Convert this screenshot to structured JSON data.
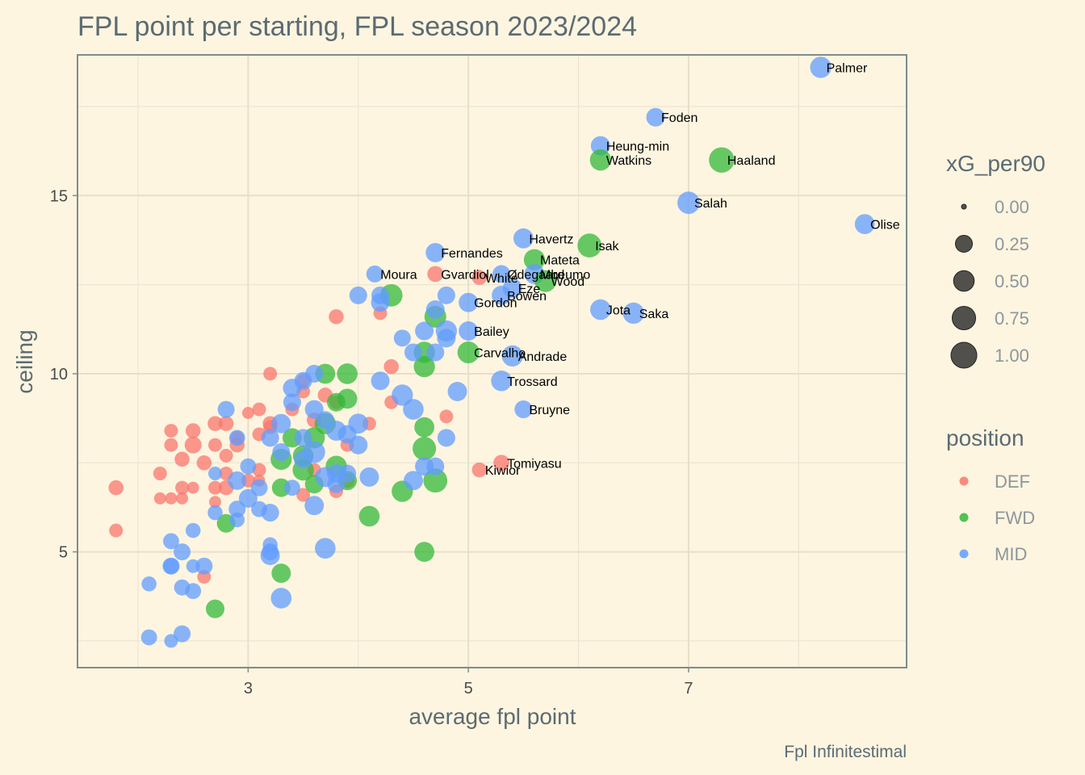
{
  "chart_data": {
    "type": "scatter",
    "title": "FPL point per starting, FPL season 2023/2024",
    "xlabel": "average fpl point",
    "ylabel": "ceiling",
    "caption": "Fpl Infinitestimal",
    "xlim": [
      1.45,
      8.98
    ],
    "ylim": [
      1.75,
      18.95
    ],
    "xticks": [
      3,
      5,
      7
    ],
    "yticks": [
      5,
      10,
      15
    ],
    "grid": true,
    "colors": {
      "DEF": "#f8766d",
      "FWD": "#33b83a",
      "MID": "#619cff"
    },
    "size_legend": {
      "title": "xG_per90",
      "values": [
        0.0,
        0.25,
        0.5,
        0.75,
        1.0
      ],
      "labels": [
        "0.00",
        "0.25",
        "0.50",
        "0.75",
        "1.00"
      ]
    },
    "color_legend": {
      "title": "position",
      "entries": [
        "DEF",
        "FWD",
        "MID"
      ]
    },
    "points": [
      {
        "x": 8.2,
        "y": 18.6,
        "pos": "MID",
        "xg": 0.55,
        "name": "Palmer"
      },
      {
        "x": 6.7,
        "y": 17.2,
        "pos": "MID",
        "xg": 0.35,
        "name": "Foden"
      },
      {
        "x": 6.2,
        "y": 16.4,
        "pos": "MID",
        "xg": 0.4,
        "name": "Heung-min"
      },
      {
        "x": 6.2,
        "y": 16.0,
        "pos": "FWD",
        "xg": 0.55,
        "name": "Watkins"
      },
      {
        "x": 7.3,
        "y": 16.0,
        "pos": "FWD",
        "xg": 0.95,
        "name": "Haaland"
      },
      {
        "x": 7.0,
        "y": 14.8,
        "pos": "MID",
        "xg": 0.65,
        "name": "Salah"
      },
      {
        "x": 8.6,
        "y": 14.2,
        "pos": "MID",
        "xg": 0.45,
        "name": "Olise"
      },
      {
        "x": 5.5,
        "y": 13.8,
        "pos": "MID",
        "xg": 0.45,
        "name": "Havertz"
      },
      {
        "x": 6.1,
        "y": 13.6,
        "pos": "FWD",
        "xg": 0.8,
        "name": "Isak"
      },
      {
        "x": 4.7,
        "y": 13.4,
        "pos": "MID",
        "xg": 0.4,
        "name": "Fernandes"
      },
      {
        "x": 5.6,
        "y": 13.2,
        "pos": "FWD",
        "xg": 0.55,
        "name": "Mateta"
      },
      {
        "x": 4.15,
        "y": 12.8,
        "pos": "MID",
        "xg": 0.25,
        "name": "Moura"
      },
      {
        "x": 4.7,
        "y": 12.8,
        "pos": "DEF",
        "xg": 0.2,
        "name": "Gvardiol"
      },
      {
        "x": 5.1,
        "y": 12.7,
        "pos": "DEF",
        "xg": 0.15,
        "name": "White"
      },
      {
        "x": 5.3,
        "y": 12.8,
        "pos": "MID",
        "xg": 0.3,
        "name": "Ødegaard"
      },
      {
        "x": 5.6,
        "y": 12.8,
        "pos": "MID",
        "xg": 0.45,
        "name": "Mbeumo"
      },
      {
        "x": 5.7,
        "y": 12.6,
        "pos": "FWD",
        "xg": 0.6,
        "name": "Wood"
      },
      {
        "x": 5.4,
        "y": 12.4,
        "pos": "MID",
        "xg": 0.4,
        "name": "Eze"
      },
      {
        "x": 5.3,
        "y": 12.2,
        "pos": "MID",
        "xg": 0.4,
        "name": "Bowen"
      },
      {
        "x": 5.0,
        "y": 12.0,
        "pos": "MID",
        "xg": 0.4,
        "name": "Gordon"
      },
      {
        "x": 6.2,
        "y": 11.8,
        "pos": "MID",
        "xg": 0.5,
        "name": "Jota"
      },
      {
        "x": 6.5,
        "y": 11.7,
        "pos": "MID",
        "xg": 0.55,
        "name": "Saka"
      },
      {
        "x": 5.0,
        "y": 11.2,
        "pos": "MID",
        "xg": 0.4,
        "name": "Bailey"
      },
      {
        "x": 5.0,
        "y": 10.6,
        "pos": "FWD",
        "xg": 0.6,
        "name": "Carvalho"
      },
      {
        "x": 5.4,
        "y": 10.5,
        "pos": "MID",
        "xg": 0.55,
        "name": "Andrade"
      },
      {
        "x": 5.3,
        "y": 9.8,
        "pos": "MID",
        "xg": 0.5,
        "name": "Trossard"
      },
      {
        "x": 5.5,
        "y": 9.0,
        "pos": "MID",
        "xg": 0.3,
        "name": "Bruyne"
      },
      {
        "x": 5.3,
        "y": 7.5,
        "pos": "DEF",
        "xg": 0.2,
        "name": "Tomiyasu"
      },
      {
        "x": 5.1,
        "y": 7.3,
        "pos": "DEF",
        "xg": 0.15,
        "name": "Kiwior"
      },
      {
        "x": 1.8,
        "y": 6.8,
        "pos": "DEF",
        "xg": 0.15
      },
      {
        "x": 1.8,
        "y": 5.6,
        "pos": "DEF",
        "xg": 0.1
      },
      {
        "x": 2.2,
        "y": 7.2,
        "pos": "DEF",
        "xg": 0.1
      },
      {
        "x": 2.2,
        "y": 6.5,
        "pos": "DEF",
        "xg": 0.05
      },
      {
        "x": 2.3,
        "y": 8.4,
        "pos": "DEF",
        "xg": 0.1
      },
      {
        "x": 2.3,
        "y": 8.0,
        "pos": "DEF",
        "xg": 0.1
      },
      {
        "x": 2.3,
        "y": 6.5,
        "pos": "DEF",
        "xg": 0.05
      },
      {
        "x": 2.4,
        "y": 7.6,
        "pos": "DEF",
        "xg": 0.15
      },
      {
        "x": 2.4,
        "y": 6.8,
        "pos": "DEF",
        "xg": 0.1
      },
      {
        "x": 2.4,
        "y": 6.5,
        "pos": "DEF",
        "xg": 0.05
      },
      {
        "x": 2.5,
        "y": 8.4,
        "pos": "DEF",
        "xg": 0.15
      },
      {
        "x": 2.5,
        "y": 8.0,
        "pos": "DEF",
        "xg": 0.25
      },
      {
        "x": 2.5,
        "y": 6.8,
        "pos": "DEF",
        "xg": 0.05
      },
      {
        "x": 2.6,
        "y": 7.5,
        "pos": "DEF",
        "xg": 0.15
      },
      {
        "x": 2.6,
        "y": 4.3,
        "pos": "DEF",
        "xg": 0.1
      },
      {
        "x": 2.7,
        "y": 8.6,
        "pos": "DEF",
        "xg": 0.15
      },
      {
        "x": 2.7,
        "y": 8.0,
        "pos": "DEF",
        "xg": 0.1
      },
      {
        "x": 2.7,
        "y": 6.8,
        "pos": "DEF",
        "xg": 0.1
      },
      {
        "x": 2.7,
        "y": 6.4,
        "pos": "DEF",
        "xg": 0.05
      },
      {
        "x": 2.8,
        "y": 8.6,
        "pos": "DEF",
        "xg": 0.15
      },
      {
        "x": 2.8,
        "y": 7.7,
        "pos": "DEF",
        "xg": 0.1
      },
      {
        "x": 2.8,
        "y": 7.2,
        "pos": "DEF",
        "xg": 0.1
      },
      {
        "x": 2.8,
        "y": 6.8,
        "pos": "DEF",
        "xg": 0.15
      },
      {
        "x": 2.9,
        "y": 8.2,
        "pos": "DEF",
        "xg": 0.1
      },
      {
        "x": 2.9,
        "y": 8.0,
        "pos": "DEF",
        "xg": 0.15
      },
      {
        "x": 3.0,
        "y": 8.9,
        "pos": "DEF",
        "xg": 0.05
      },
      {
        "x": 3.0,
        "y": 7.0,
        "pos": "DEF",
        "xg": 0.1
      },
      {
        "x": 3.1,
        "y": 9.0,
        "pos": "DEF",
        "xg": 0.1
      },
      {
        "x": 3.1,
        "y": 8.3,
        "pos": "DEF",
        "xg": 0.1
      },
      {
        "x": 3.1,
        "y": 7.3,
        "pos": "DEF",
        "xg": 0.1
      },
      {
        "x": 3.1,
        "y": 7.0,
        "pos": "DEF",
        "xg": 0.05
      },
      {
        "x": 3.2,
        "y": 10.0,
        "pos": "DEF",
        "xg": 0.1
      },
      {
        "x": 3.2,
        "y": 8.6,
        "pos": "DEF",
        "xg": 0.15
      },
      {
        "x": 3.2,
        "y": 8.5,
        "pos": "DEF",
        "xg": 0.1
      },
      {
        "x": 3.4,
        "y": 9.0,
        "pos": "DEF",
        "xg": 0.1
      },
      {
        "x": 3.5,
        "y": 9.8,
        "pos": "DEF",
        "xg": 0.1
      },
      {
        "x": 3.5,
        "y": 9.5,
        "pos": "DEF",
        "xg": 0.1
      },
      {
        "x": 3.5,
        "y": 6.6,
        "pos": "DEF",
        "xg": 0.1
      },
      {
        "x": 3.6,
        "y": 8.7,
        "pos": "DEF",
        "xg": 0.15
      },
      {
        "x": 3.6,
        "y": 7.3,
        "pos": "DEF",
        "xg": 0.1
      },
      {
        "x": 3.7,
        "y": 9.4,
        "pos": "DEF",
        "xg": 0.15
      },
      {
        "x": 3.8,
        "y": 11.6,
        "pos": "DEF",
        "xg": 0.15
      },
      {
        "x": 3.8,
        "y": 9.2,
        "pos": "DEF",
        "xg": 0.1
      },
      {
        "x": 3.8,
        "y": 6.7,
        "pos": "DEF",
        "xg": 0.1
      },
      {
        "x": 3.9,
        "y": 8.0,
        "pos": "DEF",
        "xg": 0.1
      },
      {
        "x": 3.9,
        "y": 7.0,
        "pos": "DEF",
        "xg": 0.15
      },
      {
        "x": 4.1,
        "y": 8.6,
        "pos": "DEF",
        "xg": 0.1
      },
      {
        "x": 4.2,
        "y": 11.7,
        "pos": "DEF",
        "xg": 0.1
      },
      {
        "x": 4.3,
        "y": 10.2,
        "pos": "DEF",
        "xg": 0.15
      },
      {
        "x": 4.3,
        "y": 9.2,
        "pos": "DEF",
        "xg": 0.1
      },
      {
        "x": 4.8,
        "y": 8.8,
        "pos": "DEF",
        "xg": 0.1
      },
      {
        "x": 2.7,
        "y": 3.4,
        "pos": "FWD",
        "xg": 0.35
      },
      {
        "x": 2.8,
        "y": 5.8,
        "pos": "FWD",
        "xg": 0.35
      },
      {
        "x": 3.3,
        "y": 7.6,
        "pos": "FWD",
        "xg": 0.55
      },
      {
        "x": 3.3,
        "y": 6.8,
        "pos": "FWD",
        "xg": 0.35
      },
      {
        "x": 3.3,
        "y": 4.4,
        "pos": "FWD",
        "xg": 0.4
      },
      {
        "x": 3.4,
        "y": 8.2,
        "pos": "FWD",
        "xg": 0.4
      },
      {
        "x": 3.5,
        "y": 7.7,
        "pos": "FWD",
        "xg": 0.5
      },
      {
        "x": 3.5,
        "y": 7.3,
        "pos": "FWD",
        "xg": 0.55
      },
      {
        "x": 3.6,
        "y": 8.2,
        "pos": "FWD",
        "xg": 0.55
      },
      {
        "x": 3.6,
        "y": 6.9,
        "pos": "FWD",
        "xg": 0.35
      },
      {
        "x": 3.7,
        "y": 10.0,
        "pos": "FWD",
        "xg": 0.45
      },
      {
        "x": 3.7,
        "y": 8.6,
        "pos": "FWD",
        "xg": 0.55
      },
      {
        "x": 3.8,
        "y": 9.2,
        "pos": "FWD",
        "xg": 0.35
      },
      {
        "x": 3.8,
        "y": 7.4,
        "pos": "FWD",
        "xg": 0.55
      },
      {
        "x": 3.9,
        "y": 10.0,
        "pos": "FWD",
        "xg": 0.5
      },
      {
        "x": 3.9,
        "y": 9.3,
        "pos": "FWD",
        "xg": 0.45
      },
      {
        "x": 3.9,
        "y": 7.0,
        "pos": "FWD",
        "xg": 0.4
      },
      {
        "x": 4.1,
        "y": 6.0,
        "pos": "FWD",
        "xg": 0.5
      },
      {
        "x": 4.3,
        "y": 12.2,
        "pos": "FWD",
        "xg": 0.65
      },
      {
        "x": 4.4,
        "y": 6.7,
        "pos": "FWD",
        "xg": 0.55
      },
      {
        "x": 4.6,
        "y": 10.6,
        "pos": "FWD",
        "xg": 0.55
      },
      {
        "x": 4.6,
        "y": 10.2,
        "pos": "FWD",
        "xg": 0.55
      },
      {
        "x": 4.6,
        "y": 8.5,
        "pos": "FWD",
        "xg": 0.45
      },
      {
        "x": 4.6,
        "y": 7.9,
        "pos": "FWD",
        "xg": 0.75
      },
      {
        "x": 4.6,
        "y": 5.0,
        "pos": "FWD",
        "xg": 0.45
      },
      {
        "x": 4.7,
        "y": 11.6,
        "pos": "FWD",
        "xg": 0.6
      },
      {
        "x": 4.7,
        "y": 7.0,
        "pos": "FWD",
        "xg": 0.8
      },
      {
        "x": 2.1,
        "y": 4.1,
        "pos": "MID",
        "xg": 0.15
      },
      {
        "x": 2.1,
        "y": 2.6,
        "pos": "MID",
        "xg": 0.2
      },
      {
        "x": 2.3,
        "y": 5.3,
        "pos": "MID",
        "xg": 0.2
      },
      {
        "x": 2.3,
        "y": 4.6,
        "pos": "MID",
        "xg": 0.2
      },
      {
        "x": 2.3,
        "y": 4.6,
        "pos": "MID",
        "xg": 0.25
      },
      {
        "x": 2.3,
        "y": 2.5,
        "pos": "MID",
        "xg": 0.1
      },
      {
        "x": 2.4,
        "y": 5.0,
        "pos": "MID",
        "xg": 0.25
      },
      {
        "x": 2.4,
        "y": 4.0,
        "pos": "MID",
        "xg": 0.2
      },
      {
        "x": 2.4,
        "y": 2.7,
        "pos": "MID",
        "xg": 0.25
      },
      {
        "x": 2.5,
        "y": 5.6,
        "pos": "MID",
        "xg": 0.15
      },
      {
        "x": 2.5,
        "y": 4.6,
        "pos": "MID",
        "xg": 0.1
      },
      {
        "x": 2.5,
        "y": 3.9,
        "pos": "MID",
        "xg": 0.2
      },
      {
        "x": 2.6,
        "y": 4.6,
        "pos": "MID",
        "xg": 0.25
      },
      {
        "x": 2.7,
        "y": 7.2,
        "pos": "MID",
        "xg": 0.1
      },
      {
        "x": 2.7,
        "y": 6.1,
        "pos": "MID",
        "xg": 0.15
      },
      {
        "x": 2.8,
        "y": 9.0,
        "pos": "MID",
        "xg": 0.25
      },
      {
        "x": 2.9,
        "y": 8.2,
        "pos": "MID",
        "xg": 0.2
      },
      {
        "x": 2.9,
        "y": 7.0,
        "pos": "MID",
        "xg": 0.35
      },
      {
        "x": 2.9,
        "y": 6.2,
        "pos": "MID",
        "xg": 0.25
      },
      {
        "x": 2.9,
        "y": 5.9,
        "pos": "MID",
        "xg": 0.15
      },
      {
        "x": 3.0,
        "y": 7.4,
        "pos": "MID",
        "xg": 0.2
      },
      {
        "x": 3.0,
        "y": 6.5,
        "pos": "MID",
        "xg": 0.35
      },
      {
        "x": 3.1,
        "y": 6.8,
        "pos": "MID",
        "xg": 0.25
      },
      {
        "x": 3.1,
        "y": 6.2,
        "pos": "MID",
        "xg": 0.2
      },
      {
        "x": 3.2,
        "y": 8.2,
        "pos": "MID",
        "xg": 0.3
      },
      {
        "x": 3.2,
        "y": 6.1,
        "pos": "MID",
        "xg": 0.3
      },
      {
        "x": 3.2,
        "y": 5.2,
        "pos": "MID",
        "xg": 0.15
      },
      {
        "x": 3.2,
        "y": 5.0,
        "pos": "MID",
        "xg": 0.25
      },
      {
        "x": 3.2,
        "y": 4.9,
        "pos": "MID",
        "xg": 0.4
      },
      {
        "x": 3.3,
        "y": 8.6,
        "pos": "MID",
        "xg": 0.4
      },
      {
        "x": 3.3,
        "y": 7.8,
        "pos": "MID",
        "xg": 0.3
      },
      {
        "x": 3.3,
        "y": 3.7,
        "pos": "MID",
        "xg": 0.5
      },
      {
        "x": 3.4,
        "y": 9.6,
        "pos": "MID",
        "xg": 0.35
      },
      {
        "x": 3.4,
        "y": 9.2,
        "pos": "MID",
        "xg": 0.3
      },
      {
        "x": 3.4,
        "y": 6.8,
        "pos": "MID",
        "xg": 0.2
      },
      {
        "x": 3.5,
        "y": 9.8,
        "pos": "MID",
        "xg": 0.3
      },
      {
        "x": 3.5,
        "y": 8.2,
        "pos": "MID",
        "xg": 0.3
      },
      {
        "x": 3.5,
        "y": 7.6,
        "pos": "MID",
        "xg": 0.35
      },
      {
        "x": 3.6,
        "y": 10.0,
        "pos": "MID",
        "xg": 0.3
      },
      {
        "x": 3.6,
        "y": 9.0,
        "pos": "MID",
        "xg": 0.35
      },
      {
        "x": 3.6,
        "y": 7.8,
        "pos": "MID",
        "xg": 0.6
      },
      {
        "x": 3.6,
        "y": 6.3,
        "pos": "MID",
        "xg": 0.4
      },
      {
        "x": 3.7,
        "y": 8.7,
        "pos": "MID",
        "xg": 0.3
      },
      {
        "x": 3.7,
        "y": 7.1,
        "pos": "MID",
        "xg": 0.45
      },
      {
        "x": 3.7,
        "y": 5.1,
        "pos": "MID",
        "xg": 0.5
      },
      {
        "x": 3.8,
        "y": 8.4,
        "pos": "MID",
        "xg": 0.45
      },
      {
        "x": 3.8,
        "y": 7.2,
        "pos": "MID",
        "xg": 0.35
      },
      {
        "x": 3.8,
        "y": 6.9,
        "pos": "MID",
        "xg": 0.3
      },
      {
        "x": 3.9,
        "y": 8.3,
        "pos": "MID",
        "xg": 0.35
      },
      {
        "x": 3.9,
        "y": 7.2,
        "pos": "MID",
        "xg": 0.3
      },
      {
        "x": 4.0,
        "y": 12.2,
        "pos": "MID",
        "xg": 0.3
      },
      {
        "x": 4.0,
        "y": 8.6,
        "pos": "MID",
        "xg": 0.45
      },
      {
        "x": 4.0,
        "y": 8.0,
        "pos": "MID",
        "xg": 0.35
      },
      {
        "x": 4.1,
        "y": 7.1,
        "pos": "MID",
        "xg": 0.4
      },
      {
        "x": 4.2,
        "y": 12.2,
        "pos": "MID",
        "xg": 0.3
      },
      {
        "x": 4.2,
        "y": 12.0,
        "pos": "MID",
        "xg": 0.35
      },
      {
        "x": 4.2,
        "y": 9.8,
        "pos": "MID",
        "xg": 0.35
      },
      {
        "x": 4.4,
        "y": 11.0,
        "pos": "MID",
        "xg": 0.25
      },
      {
        "x": 4.4,
        "y": 9.4,
        "pos": "MID",
        "xg": 0.55
      },
      {
        "x": 4.5,
        "y": 10.6,
        "pos": "MID",
        "xg": 0.3
      },
      {
        "x": 4.5,
        "y": 9.0,
        "pos": "MID",
        "xg": 0.5
      },
      {
        "x": 4.5,
        "y": 7.0,
        "pos": "MID",
        "xg": 0.4
      },
      {
        "x": 4.6,
        "y": 11.2,
        "pos": "MID",
        "xg": 0.35
      },
      {
        "x": 4.6,
        "y": 7.4,
        "pos": "MID",
        "xg": 0.35
      },
      {
        "x": 4.7,
        "y": 11.8,
        "pos": "MID",
        "xg": 0.35
      },
      {
        "x": 4.7,
        "y": 10.6,
        "pos": "MID",
        "xg": 0.3
      },
      {
        "x": 4.7,
        "y": 7.4,
        "pos": "MID",
        "xg": 0.3
      },
      {
        "x": 4.8,
        "y": 12.2,
        "pos": "MID",
        "xg": 0.3
      },
      {
        "x": 4.8,
        "y": 11.2,
        "pos": "MID",
        "xg": 0.55
      },
      {
        "x": 4.8,
        "y": 11.0,
        "pos": "MID",
        "xg": 0.35
      },
      {
        "x": 4.8,
        "y": 8.2,
        "pos": "MID",
        "xg": 0.3
      },
      {
        "x": 4.9,
        "y": 9.5,
        "pos": "MID",
        "xg": 0.4
      }
    ]
  }
}
